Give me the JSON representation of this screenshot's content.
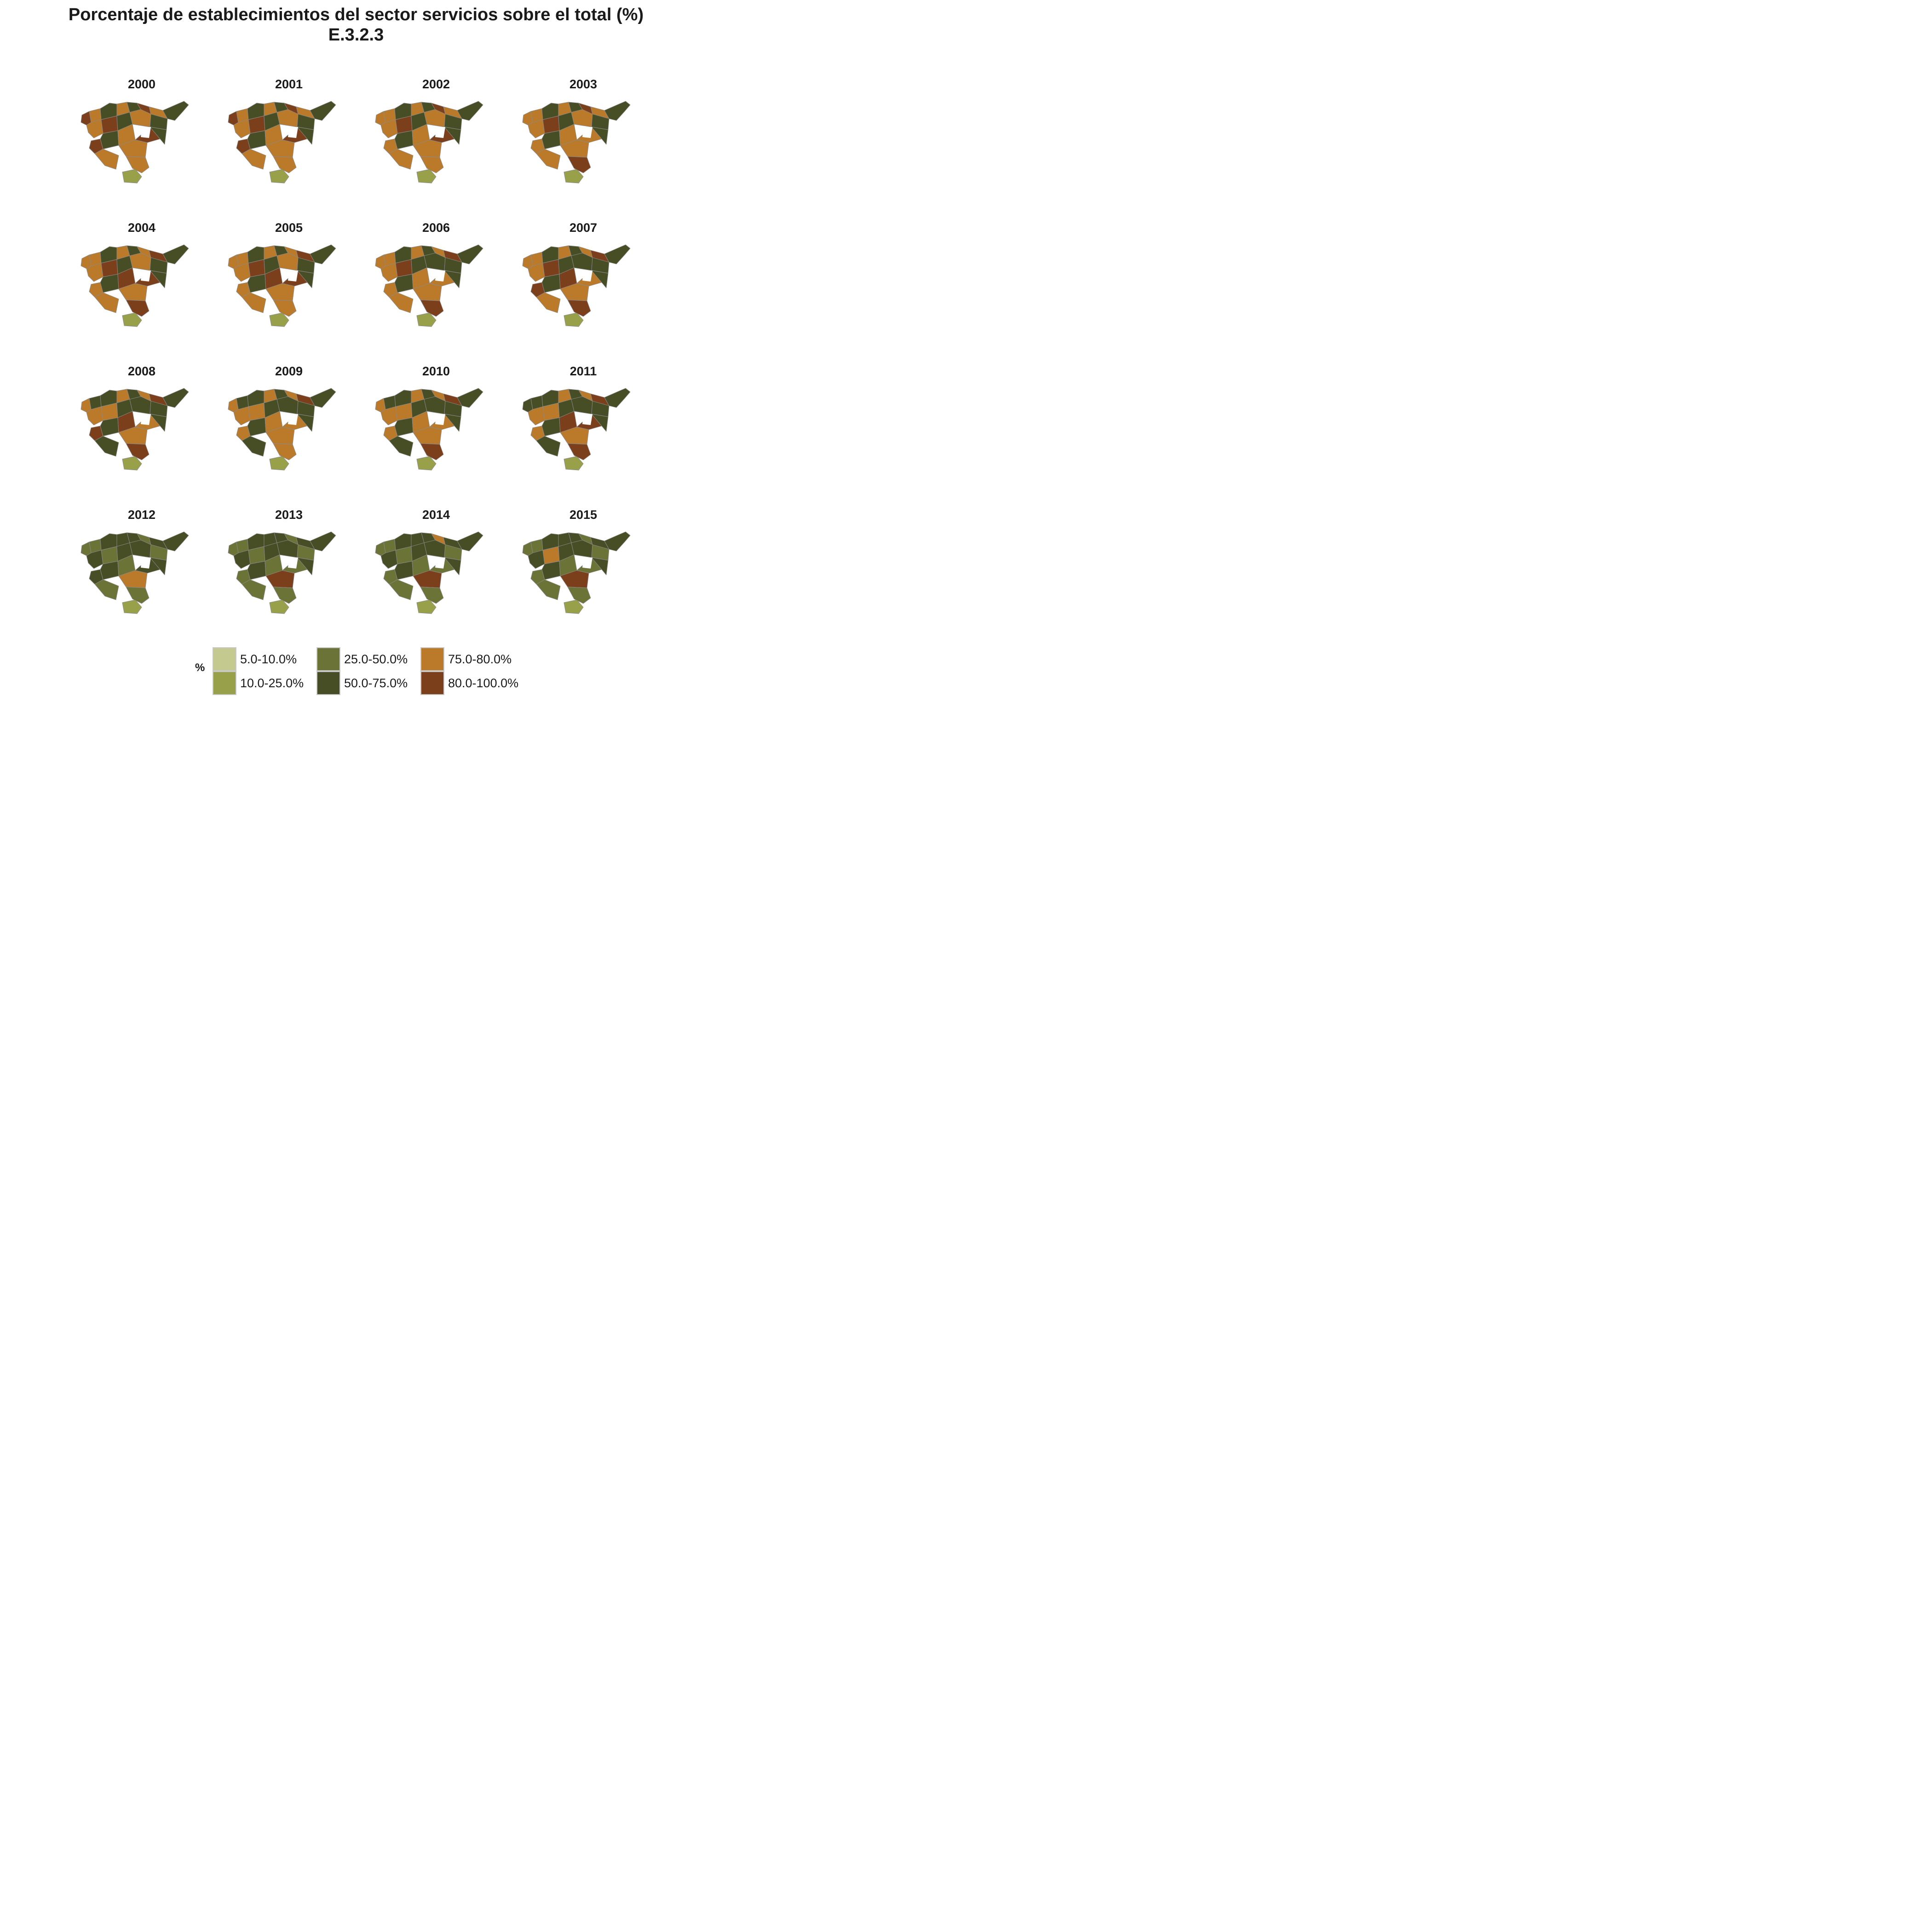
{
  "title": {
    "line1": "Porcentaje de establecimientos del sector servicios sobre el total (%)",
    "line2": "E.3.2.3"
  },
  "colors": {
    "c1": "#c4c98f",
    "c2": "#98a04a",
    "c3": "#6b7337",
    "c4": "#474d24",
    "c5": "#bb7a2a",
    "c6": "#7c3f1b",
    "border": "#8a8a8a"
  },
  "years": [
    "2000",
    "2001",
    "2002",
    "2003",
    "2004",
    "2005",
    "2006",
    "2007",
    "2008",
    "2009",
    "2010",
    "2011",
    "2012",
    "2013",
    "2014",
    "2015"
  ],
  "region_fill_classes": [
    [
      6,
      5,
      4,
      5,
      4,
      6,
      5,
      4,
      5,
      6,
      4,
      5,
      4,
      6,
      4,
      5,
      5,
      6,
      4,
      5,
      2,
      5
    ],
    [
      6,
      5,
      4,
      5,
      4,
      6,
      5,
      4,
      5,
      6,
      4,
      5,
      4,
      6,
      4,
      5,
      5,
      6,
      4,
      5,
      2,
      5
    ],
    [
      5,
      5,
      4,
      5,
      4,
      6,
      5,
      4,
      5,
      6,
      4,
      5,
      4,
      5,
      4,
      5,
      5,
      6,
      4,
      5,
      2,
      5
    ],
    [
      5,
      5,
      4,
      5,
      4,
      6,
      5,
      4,
      5,
      6,
      4,
      5,
      4,
      5,
      4,
      5,
      5,
      5,
      4,
      5,
      2,
      6
    ],
    [
      5,
      5,
      4,
      5,
      4,
      5,
      6,
      4,
      5,
      6,
      4,
      5,
      4,
      5,
      4,
      6,
      5,
      6,
      4,
      5,
      2,
      6
    ],
    [
      5,
      5,
      4,
      5,
      4,
      5,
      6,
      4,
      5,
      6,
      4,
      5,
      4,
      5,
      4,
      6,
      5,
      6,
      4,
      5,
      2,
      5
    ],
    [
      5,
      5,
      4,
      5,
      4,
      5,
      6,
      4,
      5,
      6,
      4,
      4,
      4,
      5,
      4,
      5,
      5,
      5,
      4,
      5,
      2,
      6
    ],
    [
      5,
      5,
      4,
      5,
      4,
      5,
      6,
      4,
      5,
      6,
      4,
      4,
      4,
      6,
      4,
      6,
      5,
      5,
      4,
      5,
      2,
      6
    ],
    [
      5,
      4,
      4,
      5,
      4,
      5,
      6,
      4,
      5,
      5,
      4,
      4,
      4,
      6,
      4,
      6,
      5,
      5,
      4,
      4,
      2,
      6
    ],
    [
      5,
      4,
      4,
      5,
      4,
      5,
      6,
      4,
      5,
      5,
      4,
      4,
      4,
      5,
      4,
      5,
      5,
      5,
      4,
      4,
      2,
      5
    ],
    [
      5,
      4,
      4,
      5,
      4,
      5,
      6,
      4,
      5,
      5,
      4,
      4,
      4,
      5,
      4,
      5,
      5,
      5,
      4,
      4,
      2,
      6
    ],
    [
      4,
      4,
      4,
      5,
      4,
      5,
      6,
      4,
      5,
      5,
      4,
      4,
      4,
      5,
      4,
      6,
      5,
      6,
      4,
      4,
      2,
      6
    ],
    [
      3,
      3,
      4,
      4,
      4,
      3,
      4,
      4,
      4,
      3,
      4,
      4,
      3,
      4,
      4,
      3,
      5,
      4,
      4,
      3,
      2,
      3
    ],
    [
      3,
      3,
      4,
      4,
      4,
      3,
      4,
      4,
      4,
      3,
      4,
      4,
      3,
      3,
      4,
      3,
      6,
      3,
      4,
      3,
      2,
      3
    ],
    [
      3,
      3,
      4,
      4,
      4,
      5,
      4,
      4,
      4,
      3,
      4,
      4,
      3,
      3,
      4,
      3,
      6,
      3,
      4,
      3,
      2,
      3
    ],
    [
      3,
      3,
      4,
      4,
      4,
      3,
      4,
      4,
      4,
      5,
      4,
      4,
      3,
      3,
      4,
      3,
      6,
      3,
      4,
      3,
      2,
      3
    ]
  ],
  "legend": {
    "title": "%",
    "items": [
      {
        "label": "5.0-10.0%",
        "color": "#c4c98f"
      },
      {
        "label": "10.0-25.0%",
        "color": "#98a04a"
      },
      {
        "label": "25.0-50.0%",
        "color": "#6b7337"
      },
      {
        "label": "50.0-75.0%",
        "color": "#474d24"
      },
      {
        "label": "75.0-80.0%",
        "color": "#bb7a2a"
      },
      {
        "label": "80.0-100.0%",
        "color": "#7c3f1b"
      }
    ]
  }
}
